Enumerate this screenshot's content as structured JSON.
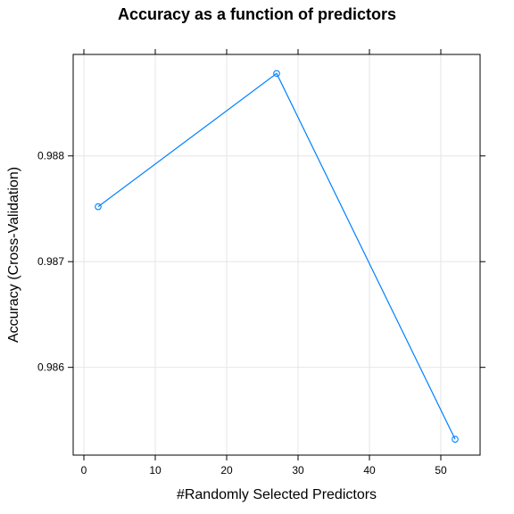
{
  "chart_data": {
    "type": "line",
    "title": "Accuracy as a function of predictors",
    "xlabel": "#Randomly Selected Predictors",
    "ylabel": "Accuracy (Cross-Validation)",
    "xlim": [
      -1.5,
      55.5
    ],
    "ylim": [
      0.98517,
      0.98896
    ],
    "xticks": [
      0,
      10,
      20,
      30,
      40,
      50
    ],
    "yticks": [
      0.986,
      0.987,
      0.988
    ],
    "grid": true,
    "series": [
      {
        "color": "#0080ff",
        "marker": "open-circle",
        "x": [
          2,
          27,
          52
        ],
        "y": [
          0.98752,
          0.98878,
          0.98532
        ]
      }
    ]
  }
}
